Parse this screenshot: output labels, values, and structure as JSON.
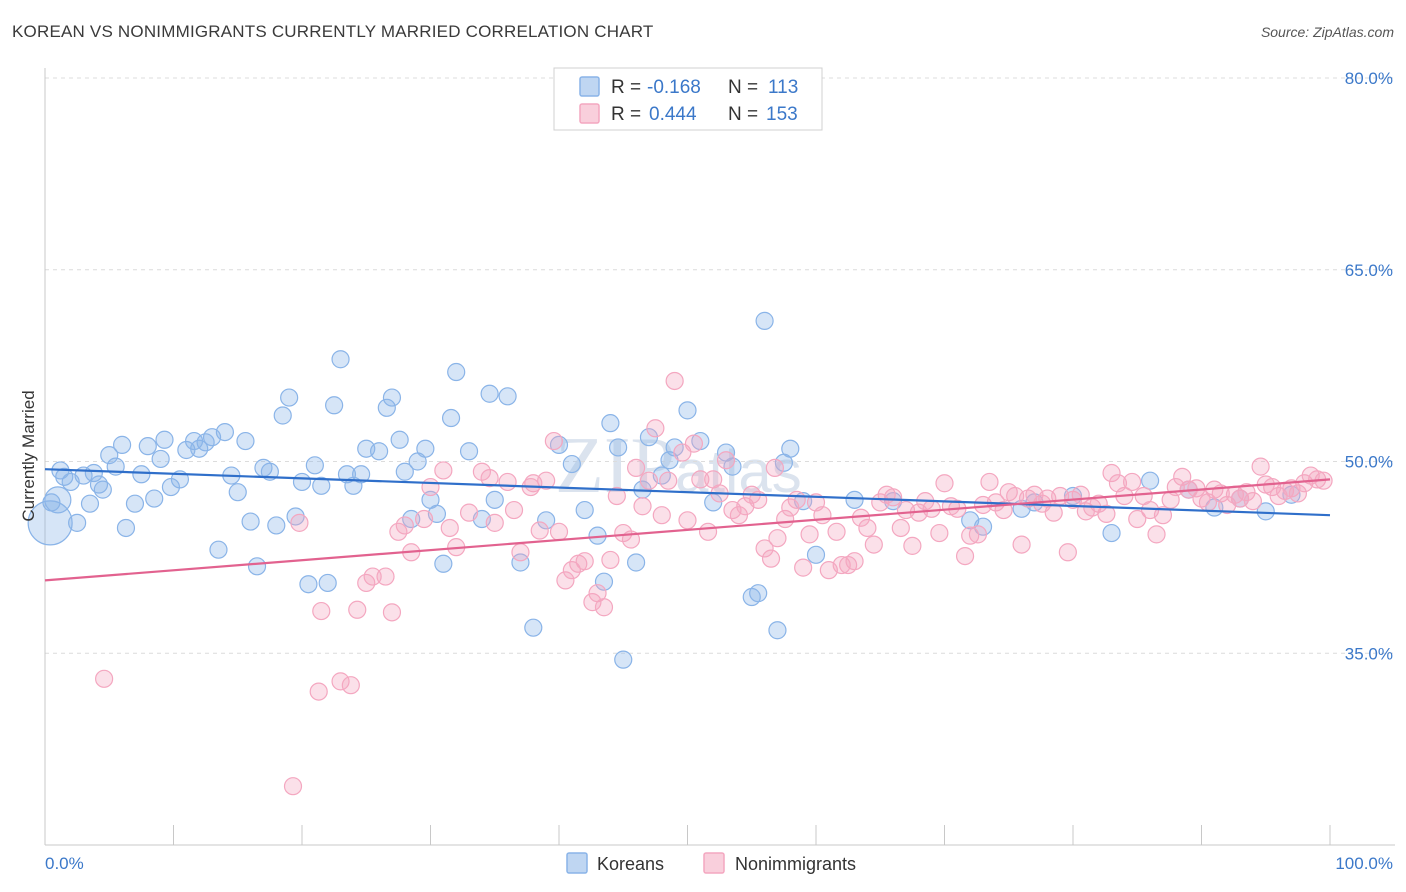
{
  "title": "KOREAN VS NONIMMIGRANTS CURRENTLY MARRIED CORRELATION CHART",
  "source": "Source: ZipAtlas.com",
  "watermark": "ZIPatlas",
  "chart_data": {
    "type": "scatter",
    "ylabel": "Currently Married",
    "xlabel": "",
    "xlim": [
      0,
      100
    ],
    "ylim": [
      20,
      80
    ],
    "x_tick_labels": [
      "0.0%",
      "100.0%"
    ],
    "y_ticks": [
      35,
      50,
      65,
      80
    ],
    "y_tick_labels": [
      "35.0%",
      "50.0%",
      "65.0%",
      "80.0%"
    ],
    "grid": "horizontal dashed",
    "legend_position": "top-center",
    "stats": [
      {
        "r_label": "R =",
        "r_value": "-0.168",
        "n_label": "N =",
        "n_value": "113"
      },
      {
        "r_label": "R =",
        "r_value": "0.444",
        "n_label": "N =",
        "n_value": "153"
      }
    ],
    "series": [
      {
        "name": "Koreans",
        "color": "#8ab4e8",
        "line_color": "#2f6fca",
        "trend": {
          "x": [
            0,
            100
          ],
          "y": [
            49.4,
            45.8
          ]
        },
        "points": [
          [
            0.5,
            46.8
          ],
          [
            1.2,
            49.3
          ],
          [
            1.5,
            48.8
          ],
          [
            2,
            48.4
          ],
          [
            2.5,
            45.2
          ],
          [
            3,
            48.9
          ],
          [
            3.5,
            46.7
          ],
          [
            3.8,
            49.1
          ],
          [
            4.2,
            48.2
          ],
          [
            4.5,
            47.8
          ],
          [
            5,
            50.5
          ],
          [
            5.5,
            49.6
          ],
          [
            6,
            51.3
          ],
          [
            6.3,
            44.8
          ],
          [
            7,
            46.7
          ],
          [
            7.5,
            49
          ],
          [
            8,
            51.2
          ],
          [
            8.5,
            47.1
          ],
          [
            9,
            50.2
          ],
          [
            9.3,
            51.7
          ],
          [
            9.8,
            48
          ],
          [
            10.5,
            48.6
          ],
          [
            11,
            50.9
          ],
          [
            11.6,
            51.6
          ],
          [
            12,
            51
          ],
          [
            12.5,
            51.5
          ],
          [
            13,
            51.9
          ],
          [
            13.5,
            43.1
          ],
          [
            14,
            52.3
          ],
          [
            14.5,
            48.9
          ],
          [
            15,
            47.6
          ],
          [
            15.6,
            51.6
          ],
          [
            16,
            45.3
          ],
          [
            16.5,
            41.8
          ],
          [
            17,
            49.5
          ],
          [
            17.5,
            49.2
          ],
          [
            18,
            45
          ],
          [
            18.5,
            53.6
          ],
          [
            19,
            55
          ],
          [
            19.5,
            45.7
          ],
          [
            20,
            48.4
          ],
          [
            20.5,
            40.4
          ],
          [
            21,
            49.7
          ],
          [
            21.5,
            48.1
          ],
          [
            22,
            40.5
          ],
          [
            22.5,
            54.4
          ],
          [
            23,
            58
          ],
          [
            23.5,
            49
          ],
          [
            24,
            48.1
          ],
          [
            24.6,
            49
          ],
          [
            25,
            51
          ],
          [
            26,
            50.8
          ],
          [
            26.6,
            54.2
          ],
          [
            27,
            55
          ],
          [
            27.6,
            51.7
          ],
          [
            28,
            49.2
          ],
          [
            28.5,
            45.5
          ],
          [
            29,
            50
          ],
          [
            29.6,
            51
          ],
          [
            30,
            47
          ],
          [
            30.5,
            45.9
          ],
          [
            31,
            42
          ],
          [
            31.6,
            53.4
          ],
          [
            32,
            57
          ],
          [
            33,
            50.8
          ],
          [
            34,
            45.5
          ],
          [
            34.6,
            55.3
          ],
          [
            35,
            47
          ],
          [
            36,
            55.1
          ],
          [
            37,
            42.1
          ],
          [
            38,
            37
          ],
          [
            39,
            45.4
          ],
          [
            40,
            51.3
          ],
          [
            41,
            49.8
          ],
          [
            42,
            46.2
          ],
          [
            43,
            44.2
          ],
          [
            43.5,
            40.6
          ],
          [
            44,
            53
          ],
          [
            44.6,
            51.1
          ],
          [
            45,
            34.5
          ],
          [
            46,
            42.1
          ],
          [
            46.5,
            47.8
          ],
          [
            47,
            51.9
          ],
          [
            48,
            48.9
          ],
          [
            48.6,
            50.1
          ],
          [
            49,
            51.1
          ],
          [
            50,
            54
          ],
          [
            51,
            51.6
          ],
          [
            52,
            46.8
          ],
          [
            53,
            50.7
          ],
          [
            53.5,
            49.6
          ],
          [
            55,
            39.4
          ],
          [
            55.5,
            39.7
          ],
          [
            56,
            61
          ],
          [
            57,
            36.8
          ],
          [
            57.5,
            49.9
          ],
          [
            58,
            51
          ],
          [
            59,
            46.9
          ],
          [
            60,
            42.7
          ],
          [
            63,
            47
          ],
          [
            66,
            46.9
          ],
          [
            72,
            45.4
          ],
          [
            73,
            44.9
          ],
          [
            76,
            46.3
          ],
          [
            77,
            46.8
          ],
          [
            80,
            47.3
          ],
          [
            83,
            44.4
          ],
          [
            86,
            48.5
          ],
          [
            89,
            47.8
          ],
          [
            91,
            46.4
          ],
          [
            93,
            47.1
          ],
          [
            95,
            46.1
          ],
          [
            97,
            47.4
          ]
        ]
      },
      {
        "name": "Nonimmigrants",
        "color": "#f4a7c0",
        "line_color": "#e2628f",
        "trend": {
          "x": [
            0,
            100
          ],
          "y": [
            40.7,
            48.6
          ]
        },
        "points": [
          [
            4.6,
            33
          ],
          [
            19.3,
            24.6
          ],
          [
            21.3,
            32
          ],
          [
            21.5,
            38.3
          ],
          [
            23,
            32.8
          ],
          [
            23.8,
            32.5
          ],
          [
            24.3,
            38.4
          ],
          [
            25,
            40.5
          ],
          [
            25.5,
            41
          ],
          [
            26.5,
            41
          ],
          [
            27,
            38.2
          ],
          [
            27.5,
            44.5
          ],
          [
            28,
            45
          ],
          [
            28.5,
            42.9
          ],
          [
            29.5,
            45.5
          ],
          [
            30,
            48
          ],
          [
            31,
            49.3
          ],
          [
            31.5,
            44.8
          ],
          [
            32,
            43.3
          ],
          [
            33,
            46
          ],
          [
            34,
            49.2
          ],
          [
            34.6,
            48.7
          ],
          [
            35,
            45.2
          ],
          [
            36,
            48.4
          ],
          [
            36.5,
            46.2
          ],
          [
            37,
            42.9
          ],
          [
            38,
            48.3
          ],
          [
            38.5,
            44.6
          ],
          [
            39,
            48.5
          ],
          [
            39.6,
            51.6
          ],
          [
            40,
            44.5
          ],
          [
            40.5,
            40.7
          ],
          [
            41,
            41.5
          ],
          [
            41.5,
            42
          ],
          [
            42,
            42.2
          ],
          [
            42.6,
            39
          ],
          [
            43,
            39.7
          ],
          [
            43.5,
            38.6
          ],
          [
            44,
            42.3
          ],
          [
            44.5,
            47.3
          ],
          [
            45,
            44.4
          ],
          [
            45.6,
            43.9
          ],
          [
            46,
            49.5
          ],
          [
            46.5,
            46.5
          ],
          [
            47,
            48.5
          ],
          [
            47.5,
            52.6
          ],
          [
            48,
            45.8
          ],
          [
            48.5,
            48.5
          ],
          [
            49,
            56.3
          ],
          [
            49.6,
            50.7
          ],
          [
            50,
            45.4
          ],
          [
            50.5,
            51.4
          ],
          [
            51,
            48.6
          ],
          [
            51.6,
            44.5
          ],
          [
            52,
            48.6
          ],
          [
            52.5,
            47.5
          ],
          [
            53,
            50.1
          ],
          [
            53.5,
            46.2
          ],
          [
            54,
            45.8
          ],
          [
            54.5,
            46.5
          ],
          [
            55,
            47.4
          ],
          [
            55.5,
            47
          ],
          [
            56,
            43.2
          ],
          [
            56.5,
            42.4
          ],
          [
            57,
            44
          ],
          [
            57.6,
            45.5
          ],
          [
            58,
            46.4
          ],
          [
            58.5,
            47
          ],
          [
            59,
            41.7
          ],
          [
            59.5,
            44.3
          ],
          [
            60,
            46.8
          ],
          [
            60.5,
            45.8
          ],
          [
            61,
            41.5
          ],
          [
            61.6,
            44.5
          ],
          [
            62,
            41.9
          ],
          [
            62.5,
            41.9
          ],
          [
            63,
            42.2
          ],
          [
            63.5,
            45.6
          ],
          [
            64,
            44.8
          ],
          [
            64.5,
            43.5
          ],
          [
            65,
            46.8
          ],
          [
            65.5,
            47.4
          ],
          [
            66,
            47.2
          ],
          [
            66.6,
            44.8
          ],
          [
            67,
            46.2
          ],
          [
            67.5,
            43.4
          ],
          [
            68,
            46
          ],
          [
            68.5,
            46.9
          ],
          [
            69,
            46.3
          ],
          [
            69.6,
            44.4
          ],
          [
            70,
            48.3
          ],
          [
            70.5,
            46.5
          ],
          [
            71,
            46.3
          ],
          [
            71.6,
            42.6
          ],
          [
            72,
            44.2
          ],
          [
            72.6,
            44.3
          ],
          [
            73,
            46.6
          ],
          [
            73.5,
            48.4
          ],
          [
            74,
            46.8
          ],
          [
            74.6,
            46.2
          ],
          [
            75,
            47.6
          ],
          [
            75.5,
            47.3
          ],
          [
            76,
            43.5
          ],
          [
            76.5,
            47.1
          ],
          [
            77,
            47.4
          ],
          [
            77.6,
            46.7
          ],
          [
            78,
            47.1
          ],
          [
            78.5,
            46
          ],
          [
            79,
            47.3
          ],
          [
            79.6,
            42.9
          ],
          [
            80,
            47
          ],
          [
            80.6,
            47.4
          ],
          [
            81,
            46.1
          ],
          [
            81.5,
            46.4
          ],
          [
            82,
            46.7
          ],
          [
            82.6,
            45.9
          ],
          [
            83,
            49.1
          ],
          [
            83.5,
            48.3
          ],
          [
            84,
            47.3
          ],
          [
            84.6,
            48.4
          ],
          [
            85,
            45.5
          ],
          [
            85.5,
            47.3
          ],
          [
            86,
            46.2
          ],
          [
            86.5,
            44.3
          ],
          [
            87,
            45.8
          ],
          [
            87.6,
            47
          ],
          [
            88,
            48
          ],
          [
            88.5,
            48.8
          ],
          [
            89,
            47.8
          ],
          [
            89.6,
            47.9
          ],
          [
            90,
            47.1
          ],
          [
            90.5,
            46.8
          ],
          [
            91,
            47.8
          ],
          [
            91.5,
            47.5
          ],
          [
            92,
            46.6
          ],
          [
            92.6,
            47.4
          ],
          [
            93,
            47.1
          ],
          [
            93.5,
            47.6
          ],
          [
            94,
            46.9
          ],
          [
            94.6,
            49.6
          ],
          [
            95,
            48.2
          ],
          [
            95.5,
            48
          ],
          [
            96,
            47.3
          ],
          [
            96.5,
            47.7
          ],
          [
            97,
            47.9
          ],
          [
            97.5,
            47.5
          ],
          [
            98,
            48.3
          ],
          [
            98.5,
            48.9
          ],
          [
            99,
            48.6
          ],
          [
            99.5,
            48.5
          ],
          [
            19.8,
            45.2
          ],
          [
            37.8,
            48
          ],
          [
            56.8,
            49.5
          ]
        ]
      }
    ]
  }
}
